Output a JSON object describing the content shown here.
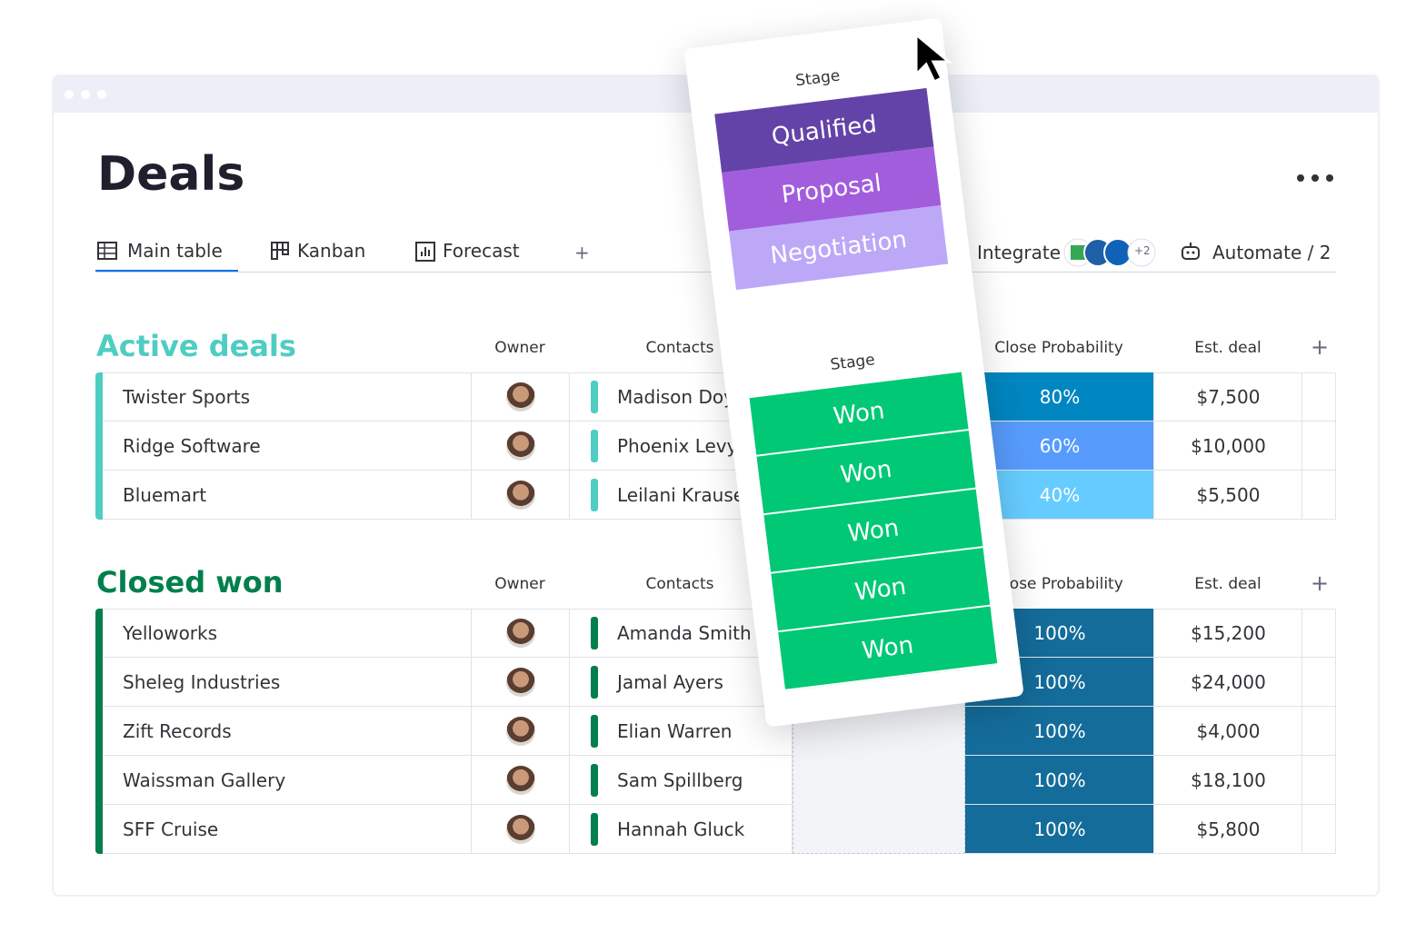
{
  "title": "Deals",
  "tabs": [
    "Main table",
    "Kanban",
    "Forecast"
  ],
  "add_tab": "+",
  "integrate": "Integrate",
  "integrate_more": "+2",
  "automate": "Automate / 2",
  "groups": [
    {
      "title": "Active deals",
      "color": "#4fcdc3",
      "columns": [
        "Owner",
        "Contacts",
        "Close Probability",
        "Est. deal"
      ],
      "add_column": "+",
      "rows": [
        {
          "name": "Twister Sports",
          "contact": "Madison Doy",
          "probability": "80%",
          "probability_color": "#0086c0",
          "estimate": "$7,500"
        },
        {
          "name": "Ridge Software",
          "contact": "Phoenix Levy",
          "probability": "60%",
          "probability_color": "#579bfc",
          "estimate": "$10,000"
        },
        {
          "name": "Bluemart",
          "contact": "Leilani Krause",
          "probability": "40%",
          "probability_color": "#66ccff",
          "estimate": "$5,500"
        }
      ]
    },
    {
      "title": "Closed won",
      "color": "#037f4c",
      "columns": [
        "Owner",
        "Contacts",
        "Close Probability",
        "Est. deal"
      ],
      "add_column": "+",
      "rows": [
        {
          "name": "Yelloworks",
          "contact": "Amanda Smith",
          "probability": "100%",
          "probability_color": "#146c9a",
          "estimate": "$15,200"
        },
        {
          "name": "Sheleg Industries",
          "contact": "Jamal Ayers",
          "probability": "100%",
          "probability_color": "#146c9a",
          "estimate": "$24,000"
        },
        {
          "name": "Zift Records",
          "contact": "Elian Warren",
          "probability": "100%",
          "probability_color": "#146c9a",
          "estimate": "$4,000"
        },
        {
          "name": "Waissman Gallery",
          "contact": "Sam Spillberg",
          "probability": "100%",
          "probability_color": "#146c9a",
          "estimate": "$18,100"
        },
        {
          "name": "SFF Cruise",
          "contact": "Hannah Gluck",
          "probability": "100%",
          "probability_color": "#146c9a",
          "estimate": "$5,800"
        }
      ]
    }
  ],
  "stage_card": {
    "top": {
      "label": "Stage",
      "options": [
        {
          "text": "Qualified",
          "color": "#6443a8"
        },
        {
          "text": "Proposal",
          "color": "#a25ddc"
        },
        {
          "text": "Negotiation",
          "color": "#bda8f7"
        }
      ]
    },
    "bottom": {
      "label": "Stage",
      "options": [
        {
          "text": "Won",
          "color": "#00c875"
        },
        {
          "text": "Won",
          "color": "#00c875"
        },
        {
          "text": "Won",
          "color": "#00c875"
        },
        {
          "text": "Won",
          "color": "#00c875"
        },
        {
          "text": "Won",
          "color": "#00c875"
        }
      ]
    }
  }
}
